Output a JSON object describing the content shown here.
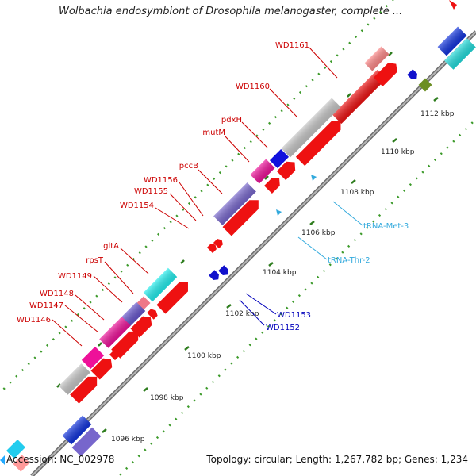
{
  "title": "Wolbachia endosymbiont of Drosophila melanogaster, complete ...",
  "footer": {
    "accession": "Accession: NC_002978",
    "summary": "Topology: circular; Length: 1,267,782 bp; Genes: 1,234"
  },
  "colors": {
    "backbone": "#8a8a8a",
    "tick_major": "#2e7d1e",
    "tick_minor": "#3c9a2a",
    "label_cds": "#cc0000",
    "label_trna": "#33aadd",
    "label_other_strand": "#0000bb"
  },
  "ticks": [
    {
      "label": "1096 kbp"
    },
    {
      "label": "1098 kbp"
    },
    {
      "label": "1100 kbp"
    },
    {
      "label": "1102 kbp"
    },
    {
      "label": "1104 kbp"
    },
    {
      "label": "1106 kbp"
    },
    {
      "label": "1108 kbp"
    },
    {
      "label": "1110 kbp"
    },
    {
      "label": "1112 kbp"
    }
  ],
  "gene_labels_upper": [
    {
      "name": "WD1161"
    },
    {
      "name": "WD1160"
    },
    {
      "name": "pdxH"
    },
    {
      "name": "mutM"
    },
    {
      "name": "pccB"
    },
    {
      "name": "WD1156"
    },
    {
      "name": "WD1155"
    },
    {
      "name": "WD1154"
    },
    {
      "name": "gltA"
    },
    {
      "name": "rpsT"
    },
    {
      "name": "WD1149"
    },
    {
      "name": "WD1148"
    },
    {
      "name": "WD1147"
    },
    {
      "name": "WD1146"
    }
  ],
  "gene_labels_lower": [
    {
      "name": "tRNA-Met-3"
    },
    {
      "name": "tRNA-Thr-2"
    },
    {
      "name": "WD1153"
    },
    {
      "name": "WD1152"
    }
  ]
}
